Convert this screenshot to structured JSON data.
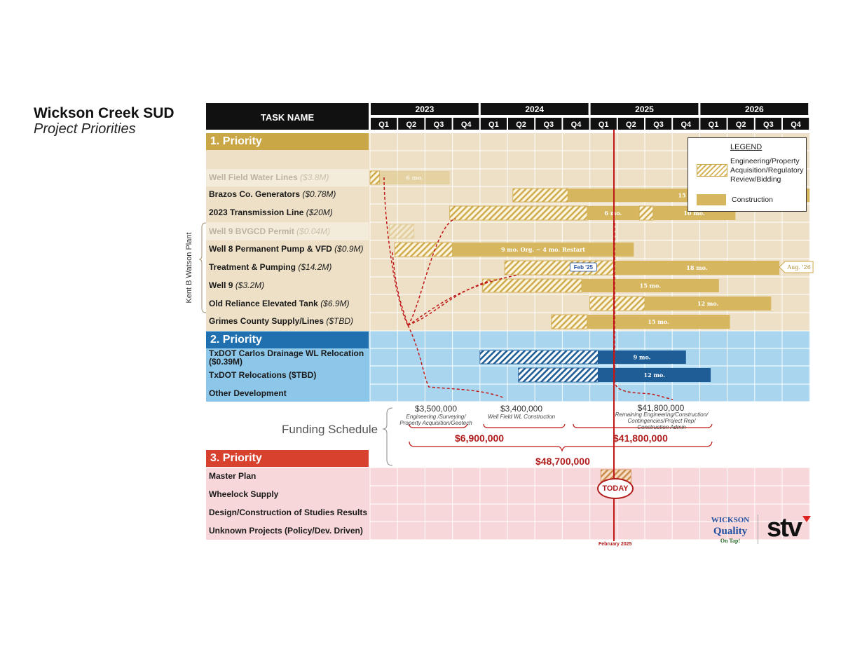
{
  "header": {
    "title": "Wickson Creek SUD",
    "subtitle": "Project Priorities",
    "task_name_header": "TASK NAME",
    "group_label": "Kent B Watson Plant"
  },
  "years": [
    "2023",
    "2024",
    "2025",
    "2026"
  ],
  "quarters": [
    "Q1",
    "Q2",
    "Q3",
    "Q4"
  ],
  "priorities": [
    {
      "label": "1. Priority",
      "color": "#c9a646"
    },
    {
      "label": "2. Priority",
      "color": "#2070b0"
    },
    {
      "label": "3. Priority",
      "color": "#d9412f"
    }
  ],
  "tasks": [
    {
      "name": "Well Field Water Lines",
      "cost": "($3.8M)",
      "faded": true
    },
    {
      "name": "Brazos Co. Generators",
      "cost": "($0.78M)"
    },
    {
      "name": "2023 Transmission Line",
      "cost": "($20M)"
    },
    {
      "name": "Well 9 BVGCD Permit",
      "cost": "($0.04M)",
      "faded": true
    },
    {
      "name": "Well 8 Permanent Pump & VFD",
      "cost": "($0.9M)"
    },
    {
      "name": "Treatment & Pumping",
      "cost": "($14.2M)"
    },
    {
      "name": "Well 9",
      "cost": "($3.2M)"
    },
    {
      "name": "Old Reliance Elevated Tank",
      "cost": "($6.9M)"
    },
    {
      "name": "Grimes County Supply/Lines",
      "cost": "($TBD)"
    },
    {
      "name": "TxDOT Carlos Drainage WL Relocation ($0.39M)"
    },
    {
      "name": "TxDOT Relocations ($TBD)"
    },
    {
      "name": "Other Development"
    },
    {
      "name": "Master Plan"
    },
    {
      "name": "Wheelock Supply"
    },
    {
      "name": "Design/Construction of Studies Results"
    },
    {
      "name": "Unknown Projects (Policy/Dev. Driven)"
    }
  ],
  "bars": [
    {
      "row": 0,
      "kind": "eng",
      "start": 0.0,
      "end": 0.35
    },
    {
      "row": 0,
      "kind": "con",
      "start": 0.35,
      "end": 2.9,
      "label": "6 mo.",
      "faded": true
    },
    {
      "row": 1,
      "kind": "eng",
      "start": 5.2,
      "end": 7.2
    },
    {
      "row": 1,
      "kind": "con",
      "start": 7.2,
      "end": 16.0,
      "label": "15 mo."
    },
    {
      "row": 2,
      "kind": "eng",
      "start": 2.9,
      "end": 7.9
    },
    {
      "row": 2,
      "kind": "con",
      "start": 7.9,
      "end": 9.8,
      "label": "6 mo."
    },
    {
      "row": 2,
      "kind": "eng",
      "start": 9.8,
      "end": 10.3
    },
    {
      "row": 2,
      "kind": "con",
      "start": 10.3,
      "end": 13.3,
      "label": "10 mo."
    },
    {
      "row": 3,
      "kind": "eng",
      "start": 0.7,
      "end": 1.6,
      "faded": true
    },
    {
      "row": 4,
      "kind": "eng",
      "start": 0.9,
      "end": 3.0
    },
    {
      "row": 4,
      "kind": "con",
      "start": 3.0,
      "end": 9.6,
      "label": "9 mo. Org. ~ 4 mo. Restart"
    },
    {
      "row": 5,
      "kind": "eng",
      "start": 4.9,
      "end": 8.9
    },
    {
      "row": 5,
      "kind": "con",
      "start": 8.9,
      "end": 14.9,
      "label": "18 mo."
    },
    {
      "row": 6,
      "kind": "eng",
      "start": 4.1,
      "end": 7.7
    },
    {
      "row": 6,
      "kind": "con",
      "start": 7.7,
      "end": 12.7,
      "label": "15 mo."
    },
    {
      "row": 7,
      "kind": "eng",
      "start": 8.0,
      "end": 10.0
    },
    {
      "row": 7,
      "kind": "con",
      "start": 10.0,
      "end": 14.6,
      "label": "12 mo."
    },
    {
      "row": 8,
      "kind": "eng",
      "start": 6.6,
      "end": 7.9
    },
    {
      "row": 8,
      "kind": "con",
      "start": 7.9,
      "end": 13.1,
      "label": "15 mo."
    },
    {
      "row": 9,
      "kind": "beng",
      "start": 4.0,
      "end": 8.3
    },
    {
      "row": 9,
      "kind": "bcon",
      "start": 8.3,
      "end": 11.5,
      "label": "9 mo."
    },
    {
      "row": 10,
      "kind": "beng",
      "start": 5.4,
      "end": 8.3
    },
    {
      "row": 10,
      "kind": "bcon",
      "start": 8.3,
      "end": 12.4,
      "label": "12 mo."
    },
    {
      "row": 12,
      "kind": "reng",
      "start": 8.4,
      "end": 9.5
    }
  ],
  "legend": {
    "title": "LEGEND",
    "eng_label": "Engineering/Property Acquisition/Regulatory Review/Bidding",
    "con_label": "Construction"
  },
  "milestones": {
    "feb25": "Feb '25",
    "aug26": "Aug. '26"
  },
  "funding": {
    "label": "Funding Schedule",
    "items": [
      {
        "amount": "$3,500,000",
        "desc1": "Engineering /Surveying/",
        "desc2": "Property Acquisition/Geotech"
      },
      {
        "amount": "$3,400,000",
        "desc1": "Well Field WL Construction",
        "desc2": ""
      },
      {
        "amount": "$41,800,000",
        "desc1": "Remaining Engineering/Construction/",
        "desc2": "Contingencies/Project Rep/",
        "desc3": "Construction Admin"
      }
    ],
    "subtotal1": "$6,900,000",
    "subtotal2": "$41,800,000",
    "total": "$48,700,000"
  },
  "today": {
    "label": "TODAY",
    "date": "February 2025"
  },
  "logos": {
    "wickson": "WICKSON",
    "quality": "Quality",
    "ontap": "On Tap!",
    "stv": "stv"
  },
  "colors": {
    "header_dark": "#111111",
    "p1_row": "#ede0c6",
    "p2_row": "#a9d6ee",
    "p3_row": "#f7d7d9",
    "eng": "#d7b45a",
    "con": "#d6b65e",
    "blue_con": "#1f5d97",
    "red_line": "#c01818"
  }
}
